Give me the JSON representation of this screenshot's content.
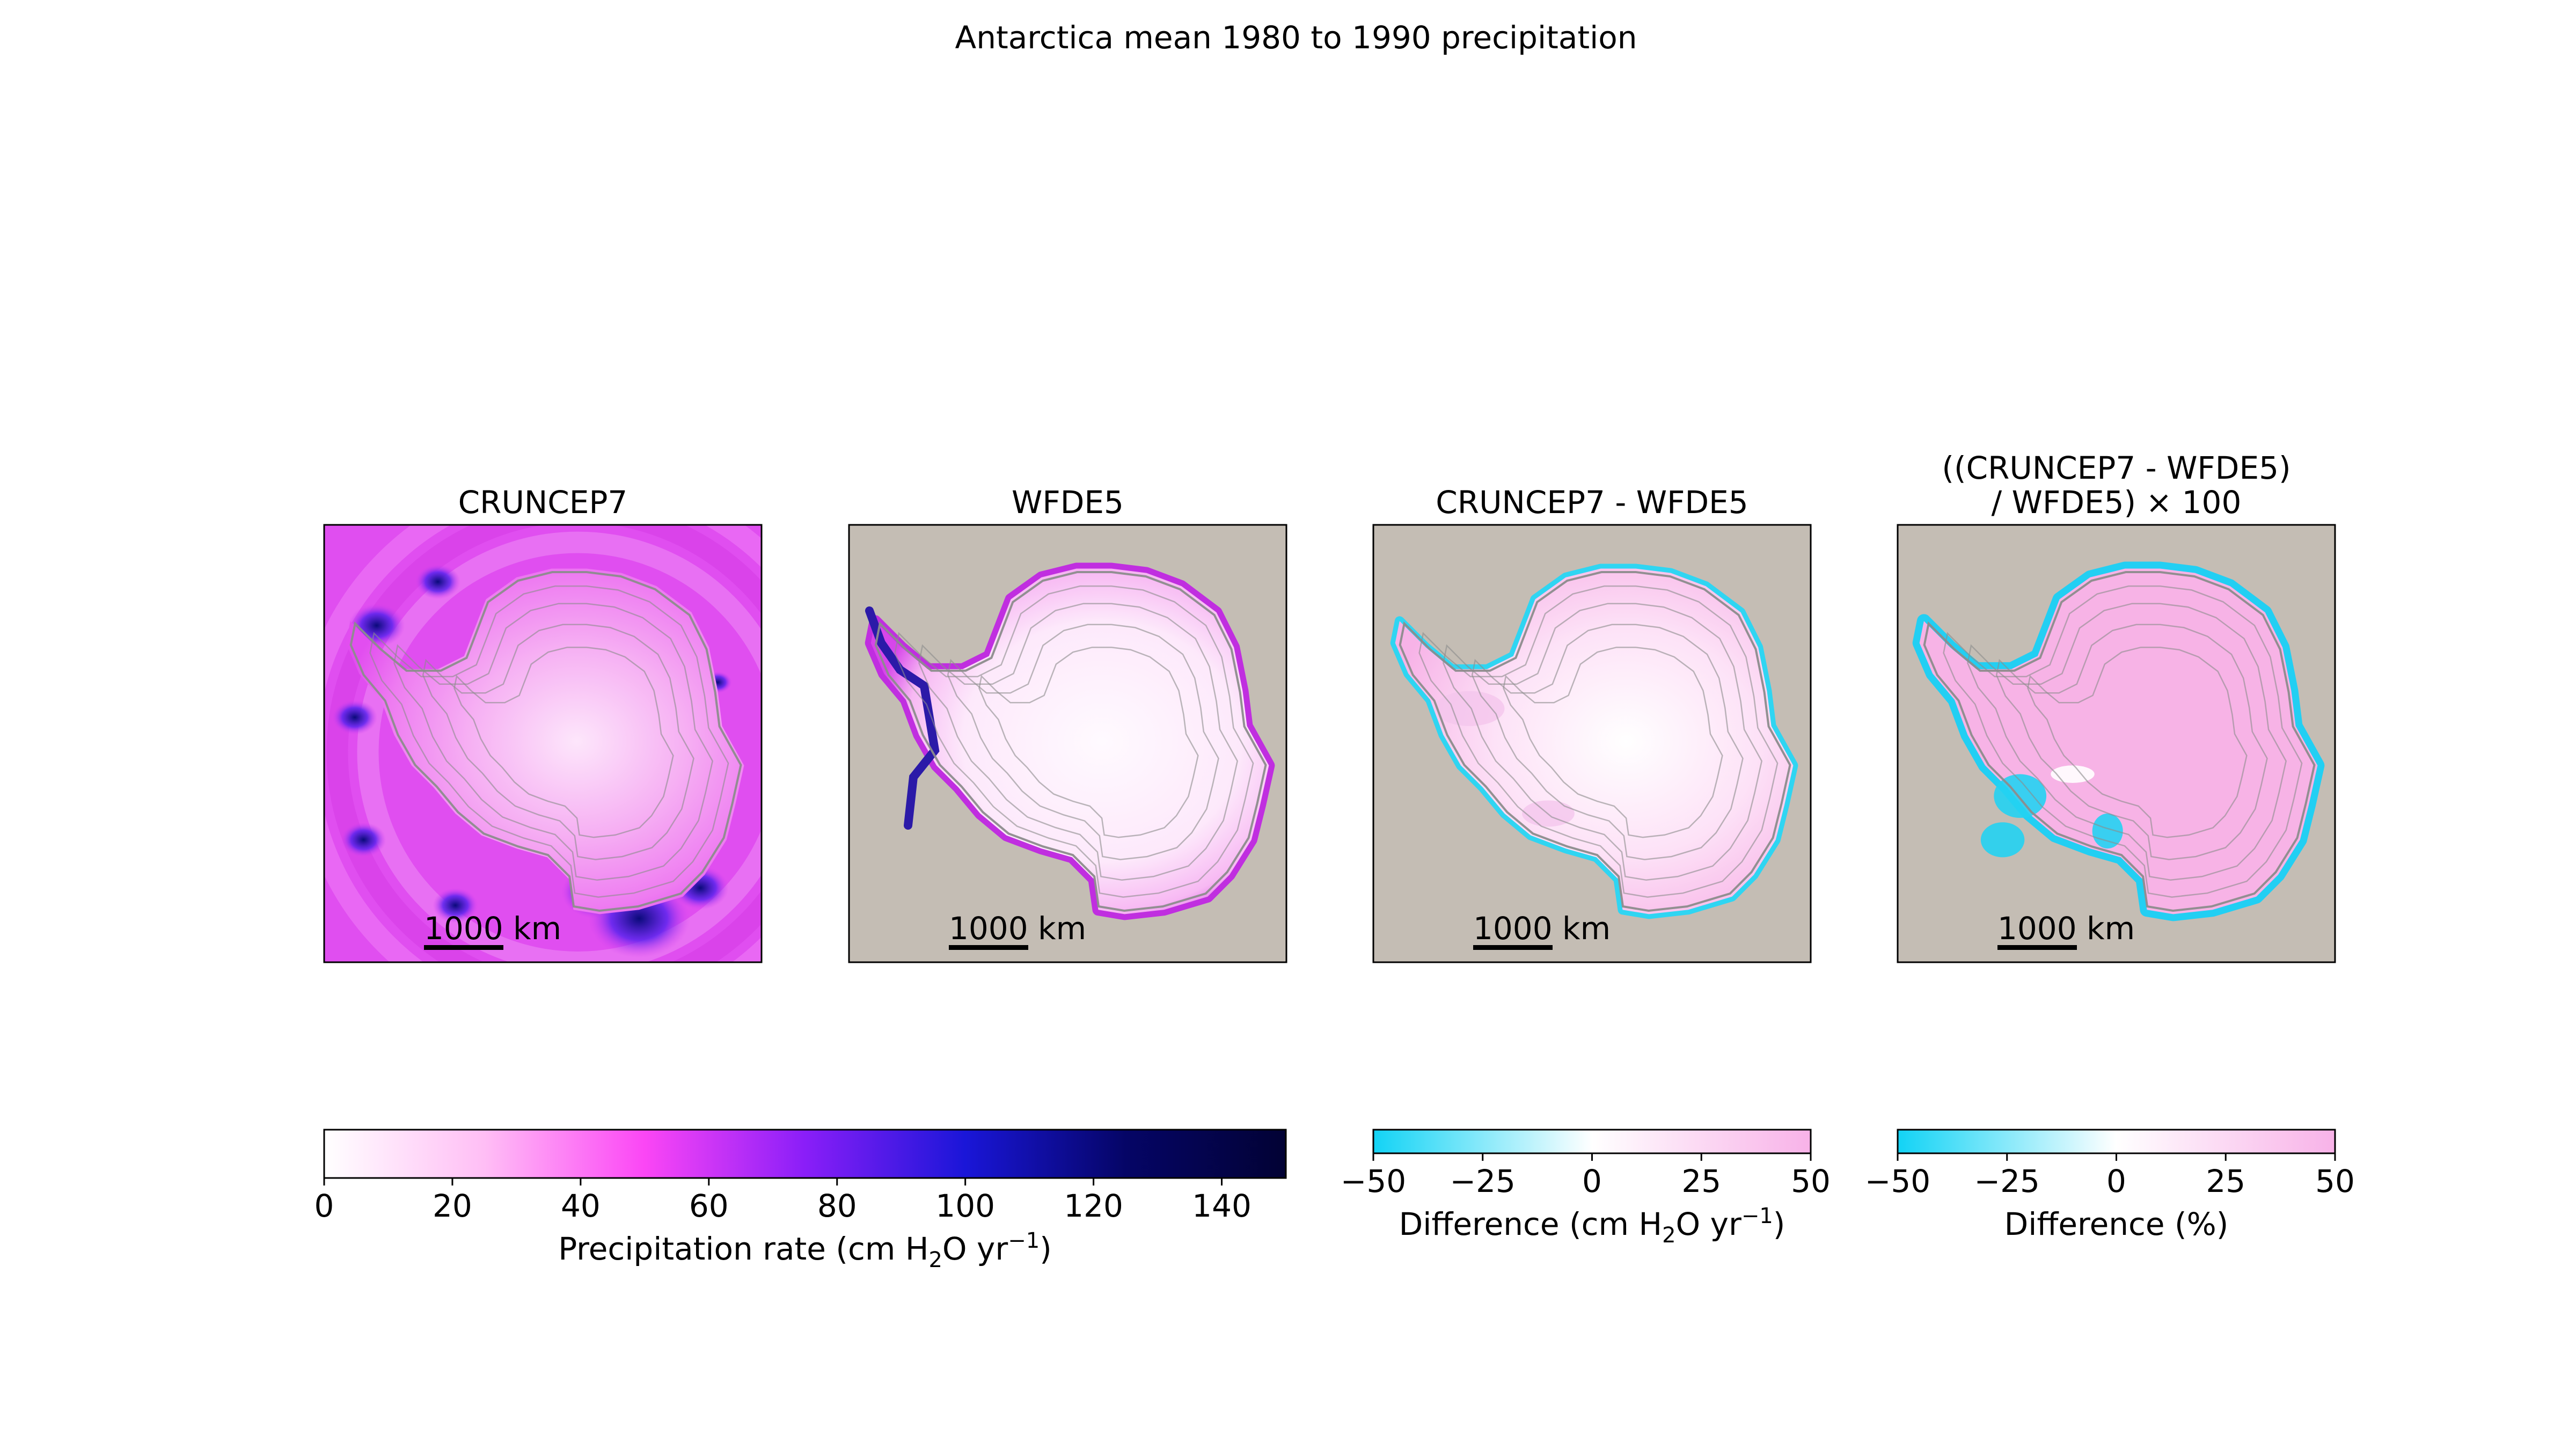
{
  "figure": {
    "title": "Antarctica mean 1980 to 1990 precipitation",
    "background": "#ffffff",
    "ocean_color": "#c4bdb4",
    "contour_color": "#8c8c8c"
  },
  "panels": [
    {
      "id": "cruncep7",
      "title_lines": [
        "CRUNCEP7"
      ],
      "scale_label": "1000 km",
      "colormap": "precip",
      "ocean_filled": true,
      "field": "cruncep"
    },
    {
      "id": "wfde5",
      "title_lines": [
        "WFDE5"
      ],
      "scale_label": "1000 km",
      "colormap": "precip",
      "ocean_filled": false,
      "field": "wfde5"
    },
    {
      "id": "difference",
      "title_lines": [
        "CRUNCEP7 - WFDE5"
      ],
      "scale_label": "1000 km",
      "colormap": "diverging",
      "ocean_filled": false,
      "field": "diff"
    },
    {
      "id": "percent_difference",
      "title_lines": [
        "((CRUNCEP7 - WFDE5)",
        "/ WFDE5) × 100"
      ],
      "scale_label": "1000 km",
      "colormap": "diverging",
      "ocean_filled": false,
      "field": "pct"
    }
  ],
  "colorbars": [
    {
      "id": "precip",
      "label_parts": [
        "Precipitation rate (cm H",
        "2",
        "O yr",
        "−1",
        ")"
      ],
      "min": 0,
      "max": 150,
      "ticks": [
        0,
        20,
        40,
        60,
        80,
        100,
        120,
        140
      ],
      "tick_labels": [
        "0",
        "20",
        "40",
        "60",
        "80",
        "100",
        "120",
        "140"
      ],
      "colors": [
        "#ffffff",
        "#ffbef5",
        "#fb46f5",
        "#8a1ef8",
        "#1a16d8",
        "#050566",
        "#020234"
      ]
    },
    {
      "id": "diff_abs",
      "label_parts": [
        "Difference (cm H",
        "2",
        "O yr",
        "−1",
        ")"
      ],
      "min": -50,
      "max": 50,
      "ticks": [
        -50,
        -25,
        0,
        25,
        50
      ],
      "tick_labels": [
        "−50",
        "−25",
        "0",
        "25",
        "50"
      ],
      "colors": [
        "#12d3f5",
        "#ffffff",
        "#f8b2e8"
      ]
    },
    {
      "id": "diff_pct",
      "label_parts": [
        "Difference (%)"
      ],
      "min": -50,
      "max": 50,
      "ticks": [
        -50,
        -25,
        0,
        25,
        50
      ],
      "tick_labels": [
        "−50",
        "−25",
        "0",
        "25",
        "50"
      ],
      "colors": [
        "#12d3f5",
        "#ffffff",
        "#f8b2e8"
      ]
    }
  ],
  "chart_data": {
    "type": "heatmap",
    "title": "Antarctica mean 1980 to 1990 precipitation",
    "datasets": [
      "CRUNCEP7",
      "WFDE5",
      "CRUNCEP7 - WFDE5",
      "((CRUNCEP7 - WFDE5) / WFDE5) × 100"
    ],
    "precipitation_colorbar": {
      "label": "Precipitation rate (cm H2O yr−1)",
      "range": [
        0,
        150
      ],
      "ticks": [
        0,
        20,
        40,
        60,
        80,
        100,
        120,
        140
      ]
    },
    "difference_colorbar": {
      "label": "Difference (cm H2O yr−1)",
      "range": [
        -50,
        50
      ],
      "ticks": [
        -50,
        -25,
        0,
        25,
        50
      ]
    },
    "percent_colorbar": {
      "label": "Difference (%)",
      "range": [
        -50,
        50
      ],
      "ticks": [
        -50,
        -25,
        0,
        25,
        50
      ]
    },
    "scale_bar": "1000 km",
    "legend": "bottom"
  }
}
